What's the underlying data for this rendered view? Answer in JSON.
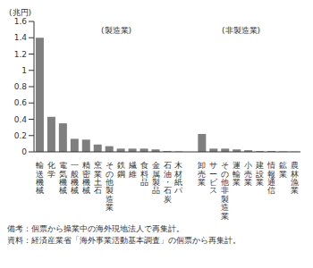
{
  "chart_data": {
    "type": "bar",
    "ylabel": "(兆円)",
    "annotations": [
      "(製造業)",
      "(非製造業)"
    ],
    "notes": [
      "備考：個票から操業中の海外現地法人で再集計。",
      "資料：経済産業省「海外事業活動基本調査」の個票から再集計。"
    ],
    "categories": [
      "輸送機械",
      "化学",
      "電気機械",
      "一般機械",
      "精密機械",
      "窯業土石",
      "その他製造業",
      "鉄鋼",
      "繊維",
      "食料品",
      "金属製品",
      "石油・石炭",
      "木材紙パ",
      null,
      "卸売業",
      "サービス",
      "その他非製造業",
      "運輸業",
      "小売業",
      "建設業",
      "情報通信",
      "鉱業",
      "農林漁業"
    ],
    "values": [
      1.4,
      0.43,
      0.35,
      0.16,
      0.15,
      0.09,
      0.07,
      0.04,
      0.04,
      0.04,
      0.03,
      0.01,
      0.005,
      null,
      0.22,
      0.04,
      0.04,
      0.03,
      0.02,
      0.01,
      0.01,
      0.005,
      0.002
    ],
    "color": "#7f7f7f",
    "ylim": [
      0,
      1.6
    ],
    "yticks": [
      0,
      0.2,
      0.4,
      0.6,
      0.8,
      1.0,
      1.2,
      1.4,
      1.6
    ],
    "grid": false
  }
}
